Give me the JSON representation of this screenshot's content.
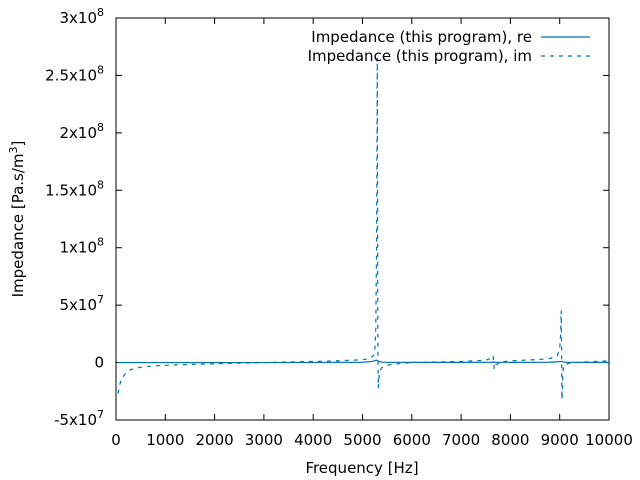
{
  "chart_data": {
    "type": "line",
    "title": "",
    "xlabel": "Frequency [Hz]",
    "ylabel_main": "Impedance [Pa.s/m",
    "ylabel_sup": "3",
    "ylabel_end": "]",
    "xlim": [
      0,
      10000
    ],
    "ylim": [
      -50000000,
      300000000
    ],
    "legend_position": "top-right",
    "grid": false,
    "x_ticks": [
      {
        "value": 0,
        "label": "0"
      },
      {
        "value": 1000,
        "label": "1000"
      },
      {
        "value": 2000,
        "label": "2000"
      },
      {
        "value": 3000,
        "label": "3000"
      },
      {
        "value": 4000,
        "label": "4000"
      },
      {
        "value": 5000,
        "label": "5000"
      },
      {
        "value": 6000,
        "label": "6000"
      },
      {
        "value": 7000,
        "label": "7000"
      },
      {
        "value": 8000,
        "label": "8000"
      },
      {
        "value": 9000,
        "label": "9000"
      },
      {
        "value": 10000,
        "label": "10000"
      }
    ],
    "y_ticks": [
      {
        "value": -50000000,
        "label": "-5x10",
        "exp": "7"
      },
      {
        "value": 0,
        "label": "0",
        "exp": ""
      },
      {
        "value": 50000000,
        "label": "5x10",
        "exp": "7"
      },
      {
        "value": 100000000,
        "label": "1x10",
        "exp": "8"
      },
      {
        "value": 150000000,
        "label": "1.5x10",
        "exp": "8"
      },
      {
        "value": 200000000,
        "label": "2x10",
        "exp": "8"
      },
      {
        "value": 250000000,
        "label": "2.5x10",
        "exp": "8"
      },
      {
        "value": 300000000,
        "label": "3x10",
        "exp": "8"
      }
    ],
    "series": [
      {
        "name": "Impedance (this program), re",
        "style": "solid",
        "color": "#0072b2",
        "x": [
          40,
          500,
          1000,
          2000,
          3000,
          4000,
          5000,
          5200,
          5270,
          5300,
          5330,
          5400,
          6000,
          7000,
          7600,
          7660,
          7700,
          8000,
          8800,
          9000,
          9040,
          9060,
          9100,
          9500,
          10000
        ],
        "y": [
          0,
          0,
          0,
          0,
          0,
          100000,
          300000,
          1000000,
          2000000,
          2000000,
          1000000,
          300000,
          200000,
          200000,
          300000,
          400000,
          300000,
          200000,
          300000,
          800000,
          1000000,
          800000,
          300000,
          200000,
          200000
        ]
      },
      {
        "name": "Impedance (this program), im",
        "style": "dashed",
        "color": "#0072b2",
        "x": [
          40,
          100,
          200,
          300,
          500,
          800,
          1200,
          2000,
          3000,
          4000,
          4500,
          5000,
          5150,
          5220,
          5250,
          5270,
          5285,
          5295,
          5300,
          5310,
          5320,
          5340,
          5380,
          5450,
          5600,
          6000,
          7000,
          7500,
          7620,
          7650,
          7670,
          7700,
          7800,
          8000,
          8500,
          8800,
          8950,
          9000,
          9020,
          9030,
          9040,
          9045,
          9055,
          9065,
          9080,
          9120,
          9200,
          9500,
          10000
        ],
        "y": [
          -27000000,
          -15000000,
          -9000000,
          -6000000,
          -4000000,
          -2800000,
          -2000000,
          -1000000,
          0,
          1000000,
          1500000,
          2500000,
          3500000,
          6000000,
          10000000,
          30000000,
          100000000,
          200000000,
          265000000,
          30000000,
          -22000000,
          -10000000,
          -5000000,
          -3000000,
          -1500000,
          0,
          1000000,
          2000000,
          4000000,
          6000000,
          -6000000,
          -2000000,
          500000,
          1500000,
          2500000,
          3500000,
          6000000,
          12000000,
          25000000,
          45000000,
          10000000,
          -32000000,
          -25000000,
          -8000000,
          -3000000,
          -1500000,
          -500000,
          500000,
          1500000
        ]
      }
    ]
  }
}
